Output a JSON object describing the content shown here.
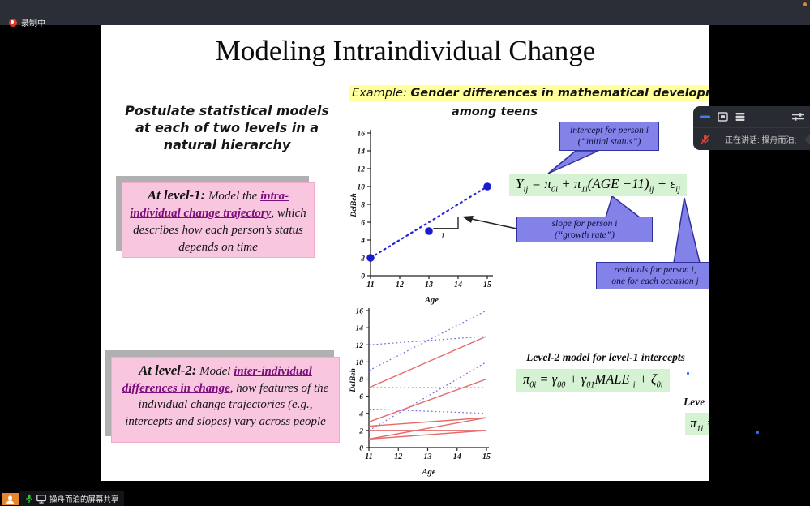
{
  "system": {
    "recording_label": "录制中",
    "taskbar": {
      "share_label": "操舟而泊的屏幕共享"
    }
  },
  "meeting_panel": {
    "speaking_label": "正在讲话: 操舟而泊;",
    "icons": [
      "minimize-icon",
      "window-icon",
      "list-icon",
      "sliders-icon",
      "mic-muted-icon",
      "app-logo"
    ]
  },
  "slide": {
    "title": "Modeling Intraindividual Change",
    "postulate": "Postulate statistical models\nat each of two levels in a\nnatural hierarchy",
    "example": {
      "prefix": "Example: ",
      "highlight": "Gender differences in mathematical development",
      "line2": "among teens"
    },
    "level1_box": {
      "segments": [
        {
          "text": "At level-1:",
          "style": "lead"
        },
        {
          "text": " Model the ",
          "style": "plain"
        },
        {
          "text": "intra-individual change trajectory",
          "style": "emphasis"
        },
        {
          "text": ", which describes how each person’s status depends on time",
          "style": "plain"
        }
      ]
    },
    "level2_box": {
      "segments": [
        {
          "text": "At level-2:",
          "style": "lead"
        },
        {
          "text": " Model ",
          "style": "plain"
        },
        {
          "text": "inter-individual differences in change",
          "style": "emphasis"
        },
        {
          "text": ", how features of the individual change trajectories (e.g., intercepts and slopes) vary across people",
          "style": "plain"
        }
      ]
    },
    "callouts": {
      "intercept": "intercept for person i\n(“initial status”)",
      "slope": "slope for person i\n(“growth rate”)",
      "residuals": "residuals for person i,\none for each occasion j"
    },
    "level2_heading": "Level-2 model for level-1 intercepts",
    "level2_heading_partial": "Leve",
    "equations": {
      "level1": [
        {
          "b": "Y",
          "s": "ij"
        },
        {
          "b": " = "
        },
        {
          "b": "π",
          "s": "0i"
        },
        {
          "b": " + "
        },
        {
          "b": "π",
          "s": "1i"
        },
        {
          "b": "(AGE −11)",
          "s": "ij"
        },
        {
          "b": " + "
        },
        {
          "b": "ε",
          "s": "ij"
        }
      ],
      "level2_intercept": [
        {
          "b": "π",
          "s": "0i"
        },
        {
          "b": " = "
        },
        {
          "b": "γ",
          "s": "00"
        },
        {
          "b": " + "
        },
        {
          "b": "γ",
          "s": "01"
        },
        {
          "b": "MALE ",
          "s": "i"
        },
        {
          "b": " + "
        },
        {
          "b": "ζ",
          "s": "0i"
        }
      ],
      "level2_slope_partial": [
        {
          "b": "π",
          "s": "1i"
        },
        {
          "b": " ="
        }
      ]
    }
  },
  "chart_data": [
    {
      "type": "scatter",
      "xlabel": "Age",
      "ylabel": "DelBeh",
      "xlim": [
        11,
        15
      ],
      "ylim": [
        0,
        16
      ],
      "xticks": [
        11,
        12,
        13,
        14,
        15
      ],
      "yticks": [
        0,
        2,
        4,
        6,
        8,
        10,
        12,
        14,
        16
      ],
      "points": [
        [
          11,
          2
        ],
        [
          13,
          5
        ],
        [
          15,
          10
        ]
      ],
      "point_color": "#1b1bd0",
      "trend": {
        "from": [
          11,
          2
        ],
        "to": [
          15,
          10
        ],
        "style": "dotted",
        "color": "#2424d8"
      },
      "slope_marker": {
        "h_from": [
          13.15,
          5.3
        ],
        "corner": [
          14,
          5.3
        ],
        "v_to": [
          14,
          6.6
        ],
        "label": "1"
      },
      "grid": false,
      "legend": "none"
    },
    {
      "type": "line",
      "xlabel": "Age",
      "ylabel": "DelBeh",
      "xlim": [
        11,
        15
      ],
      "ylim": [
        0,
        16
      ],
      "xticks": [
        11,
        12,
        13,
        14,
        15
      ],
      "yticks": [
        0,
        2,
        4,
        6,
        8,
        10,
        12,
        14,
        16
      ],
      "series": [
        {
          "name": "dotted-blue-trajectories",
          "style": "dotted",
          "color": "#6f6fdc",
          "lines": [
            [
              [
                11,
                12
              ],
              [
                15,
                13
              ]
            ],
            [
              [
                11,
                9
              ],
              [
                15,
                16
              ]
            ],
            [
              [
                11,
                7
              ],
              [
                15,
                7
              ]
            ],
            [
              [
                11,
                4.5
              ],
              [
                15,
                4
              ]
            ],
            [
              [
                11,
                2
              ],
              [
                15,
                10
              ]
            ]
          ]
        },
        {
          "name": "solid-red-trajectories",
          "style": "solid",
          "color": "#e56a6a",
          "lines": [
            [
              [
                11,
                7
              ],
              [
                15,
                13
              ]
            ],
            [
              [
                11,
                3
              ],
              [
                15,
                8
              ]
            ],
            [
              [
                11,
                2.5
              ],
              [
                15,
                3.5
              ]
            ],
            [
              [
                11,
                1
              ],
              [
                15,
                3.5
              ]
            ],
            [
              [
                11,
                2
              ],
              [
                15,
                2
              ]
            ],
            [
              [
                11,
                1
              ],
              [
                15,
                2
              ]
            ]
          ]
        }
      ],
      "grid": false,
      "legend": "none"
    }
  ],
  "colors": {
    "recording_red": "#e2382c",
    "taskbar_orange": "#e5862c",
    "mic_green": "#35c235",
    "minimize_blue": "#3f7ef0",
    "slide_pink": "#f8c6de",
    "purple_text": "#7c0d7c",
    "highlight_yellow": "#ffff9c",
    "equation_green": "#d5f3d3",
    "callout_blue": "#8282e8",
    "callout_border": "#31319e",
    "chart_blue": "#1b1bd0",
    "chart_red": "#e56a6a",
    "chart_dotted_blue": "#6f6fdc"
  }
}
